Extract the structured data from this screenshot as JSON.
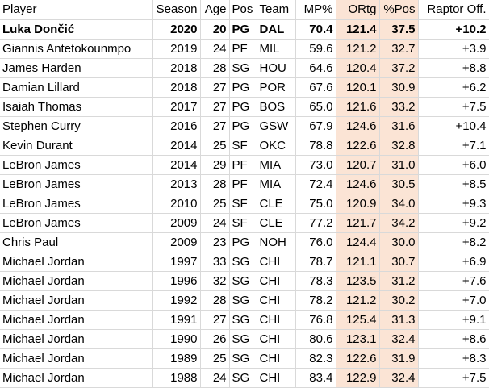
{
  "columns": [
    "Player",
    "Season",
    "Age",
    "Pos",
    "Team",
    "MP%",
    "ORtg",
    "%Pos",
    "Raptor Off."
  ],
  "highlight_color": "#fbe4d5",
  "rows": [
    {
      "player": "Luka Dončić",
      "season": "2020",
      "age": "20",
      "pos": "PG",
      "team": "DAL",
      "mp": "70.4",
      "ortg": "121.4",
      "pospct": "37.5",
      "raptor": "+10.2"
    },
    {
      "player": "Giannis Antetokounmpo",
      "season": "2019",
      "age": "24",
      "pos": "PF",
      "team": "MIL",
      "mp": "59.6",
      "ortg": "121.2",
      "pospct": "32.7",
      "raptor": "+3.9"
    },
    {
      "player": "James Harden",
      "season": "2018",
      "age": "28",
      "pos": "SG",
      "team": "HOU",
      "mp": "64.6",
      "ortg": "120.4",
      "pospct": "37.2",
      "raptor": "+8.8"
    },
    {
      "player": "Damian Lillard",
      "season": "2018",
      "age": "27",
      "pos": "PG",
      "team": "POR",
      "mp": "67.6",
      "ortg": "120.1",
      "pospct": "30.9",
      "raptor": "+6.2"
    },
    {
      "player": "Isaiah Thomas",
      "season": "2017",
      "age": "27",
      "pos": "PG",
      "team": "BOS",
      "mp": "65.0",
      "ortg": "121.6",
      "pospct": "33.2",
      "raptor": "+7.5"
    },
    {
      "player": "Stephen Curry",
      "season": "2016",
      "age": "27",
      "pos": "PG",
      "team": "GSW",
      "mp": "67.9",
      "ortg": "124.6",
      "pospct": "31.6",
      "raptor": "+10.4"
    },
    {
      "player": "Kevin Durant",
      "season": "2014",
      "age": "25",
      "pos": "SF",
      "team": "OKC",
      "mp": "78.8",
      "ortg": "122.6",
      "pospct": "32.8",
      "raptor": "+7.1"
    },
    {
      "player": "LeBron James",
      "season": "2014",
      "age": "29",
      "pos": "PF",
      "team": "MIA",
      "mp": "73.0",
      "ortg": "120.7",
      "pospct": "31.0",
      "raptor": "+6.0"
    },
    {
      "player": "LeBron James",
      "season": "2013",
      "age": "28",
      "pos": "PF",
      "team": "MIA",
      "mp": "72.4",
      "ortg": "124.6",
      "pospct": "30.5",
      "raptor": "+8.5"
    },
    {
      "player": "LeBron James",
      "season": "2010",
      "age": "25",
      "pos": "SF",
      "team": "CLE",
      "mp": "75.0",
      "ortg": "120.9",
      "pospct": "34.0",
      "raptor": "+9.3"
    },
    {
      "player": "LeBron James",
      "season": "2009",
      "age": "24",
      "pos": "SF",
      "team": "CLE",
      "mp": "77.2",
      "ortg": "121.7",
      "pospct": "34.2",
      "raptor": "+9.2"
    },
    {
      "player": "Chris Paul",
      "season": "2009",
      "age": "23",
      "pos": "PG",
      "team": "NOH",
      "mp": "76.0",
      "ortg": "124.4",
      "pospct": "30.0",
      "raptor": "+8.2"
    },
    {
      "player": "Michael Jordan",
      "season": "1997",
      "age": "33",
      "pos": "SG",
      "team": "CHI",
      "mp": "78.7",
      "ortg": "121.1",
      "pospct": "30.7",
      "raptor": "+6.9"
    },
    {
      "player": "Michael Jordan",
      "season": "1996",
      "age": "32",
      "pos": "SG",
      "team": "CHI",
      "mp": "78.3",
      "ortg": "123.5",
      "pospct": "31.2",
      "raptor": "+7.6"
    },
    {
      "player": "Michael Jordan",
      "season": "1992",
      "age": "28",
      "pos": "SG",
      "team": "CHI",
      "mp": "78.2",
      "ortg": "121.2",
      "pospct": "30.2",
      "raptor": "+7.0"
    },
    {
      "player": "Michael Jordan",
      "season": "1991",
      "age": "27",
      "pos": "SG",
      "team": "CHI",
      "mp": "76.8",
      "ortg": "125.4",
      "pospct": "31.3",
      "raptor": "+9.1"
    },
    {
      "player": "Michael Jordan",
      "season": "1990",
      "age": "26",
      "pos": "SG",
      "team": "CHI",
      "mp": "80.6",
      "ortg": "123.1",
      "pospct": "32.4",
      "raptor": "+8.6"
    },
    {
      "player": "Michael Jordan",
      "season": "1989",
      "age": "25",
      "pos": "SG",
      "team": "CHI",
      "mp": "82.3",
      "ortg": "122.6",
      "pospct": "31.9",
      "raptor": "+8.3"
    },
    {
      "player": "Michael Jordan",
      "season": "1988",
      "age": "24",
      "pos": "SG",
      "team": "CHI",
      "mp": "83.4",
      "ortg": "122.9",
      "pospct": "32.4",
      "raptor": "+7.5"
    }
  ]
}
